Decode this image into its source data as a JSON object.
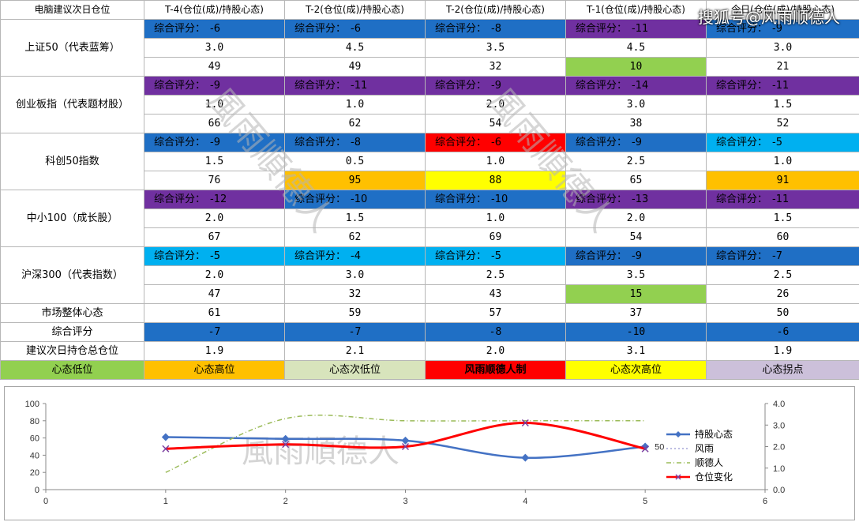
{
  "table": {
    "headers": [
      "电脑建议次日仓位",
      "T-4(仓位(成)/持股心态)",
      "T-2(仓位(成)/持股心态)",
      "T-2(仓位(成)/持股心态)",
      "T-1(仓位(成)/持股心态)",
      "今日(仓位(成)/持股心态)"
    ],
    "score_prefix": "综合评分：",
    "groups": [
      {
        "label": "上证50（代表蓝筹）",
        "cells": [
          {
            "score": "-6",
            "score_color": "#1f6fc5",
            "position": "3.0",
            "sentiment": "49",
            "sentiment_color": "#ffffff"
          },
          {
            "score": "-6",
            "score_color": "#1f6fc5",
            "position": "4.5",
            "sentiment": "49",
            "sentiment_color": "#ffffff"
          },
          {
            "score": "-8",
            "score_color": "#1f6fc5",
            "position": "3.5",
            "sentiment": "32",
            "sentiment_color": "#ffffff"
          },
          {
            "score": "-11",
            "score_color": "#7030a0",
            "position": "4.5",
            "sentiment": "10",
            "sentiment_color": "#92d050"
          },
          {
            "score": "-9",
            "score_color": "#1f6fc5",
            "position": "3.0",
            "sentiment": "21",
            "sentiment_color": "#ffffff"
          }
        ]
      },
      {
        "label": "创业板指（代表题材股）",
        "cells": [
          {
            "score": "-9",
            "score_color": "#7030a0",
            "position": "1.0",
            "sentiment": "66",
            "sentiment_color": "#ffffff"
          },
          {
            "score": "-11",
            "score_color": "#7030a0",
            "position": "1.0",
            "sentiment": "62",
            "sentiment_color": "#ffffff"
          },
          {
            "score": "-9",
            "score_color": "#7030a0",
            "position": "2.0",
            "sentiment": "54",
            "sentiment_color": "#ffffff"
          },
          {
            "score": "-14",
            "score_color": "#7030a0",
            "position": "3.0",
            "sentiment": "38",
            "sentiment_color": "#ffffff"
          },
          {
            "score": "-11",
            "score_color": "#7030a0",
            "position": "1.5",
            "sentiment": "52",
            "sentiment_color": "#ffffff"
          }
        ]
      },
      {
        "label": "科创50指数",
        "cells": [
          {
            "score": "-9",
            "score_color": "#1f6fc5",
            "position": "1.5",
            "sentiment": "76",
            "sentiment_color": "#ffffff"
          },
          {
            "score": "-8",
            "score_color": "#1f6fc5",
            "position": "0.5",
            "sentiment": "95",
            "sentiment_color": "#ffc000"
          },
          {
            "score": "-6",
            "score_color": "#ff0000",
            "position": "1.0",
            "sentiment": "88",
            "sentiment_color": "#ffff00"
          },
          {
            "score": "-9",
            "score_color": "#1f6fc5",
            "position": "2.5",
            "sentiment": "65",
            "sentiment_color": "#ffffff"
          },
          {
            "score": "-5",
            "score_color": "#00b0f0",
            "position": "1.0",
            "sentiment": "91",
            "sentiment_color": "#ffc000"
          }
        ]
      },
      {
        "label": "中小100（成长股）",
        "cells": [
          {
            "score": "-12",
            "score_color": "#7030a0",
            "position": "2.0",
            "sentiment": "67",
            "sentiment_color": "#ffffff"
          },
          {
            "score": "-10",
            "score_color": "#1f6fc5",
            "position": "1.5",
            "sentiment": "62",
            "sentiment_color": "#ffffff"
          },
          {
            "score": "-10",
            "score_color": "#1f6fc5",
            "position": "1.0",
            "sentiment": "69",
            "sentiment_color": "#ffffff"
          },
          {
            "score": "-13",
            "score_color": "#7030a0",
            "position": "2.0",
            "sentiment": "54",
            "sentiment_color": "#ffffff"
          },
          {
            "score": "-11",
            "score_color": "#7030a0",
            "position": "1.5",
            "sentiment": "60",
            "sentiment_color": "#ffffff"
          }
        ]
      },
      {
        "label": "沪深300（代表指数）",
        "cells": [
          {
            "score": "-5",
            "score_color": "#00b0f0",
            "position": "2.0",
            "sentiment": "47",
            "sentiment_color": "#ffffff"
          },
          {
            "score": "-4",
            "score_color": "#00b0f0",
            "position": "3.0",
            "sentiment": "32",
            "sentiment_color": "#ffffff"
          },
          {
            "score": "-5",
            "score_color": "#00b0f0",
            "position": "2.5",
            "sentiment": "43",
            "sentiment_color": "#ffffff"
          },
          {
            "score": "-9",
            "score_color": "#1f6fc5",
            "position": "3.5",
            "sentiment": "15",
            "sentiment_color": "#92d050"
          },
          {
            "score": "-7",
            "score_color": "#1f6fc5",
            "position": "2.5",
            "sentiment": "26",
            "sentiment_color": "#ffffff"
          }
        ]
      }
    ],
    "market_label": "市场整体心态",
    "market_values": [
      "61",
      "59",
      "57",
      "37",
      "50"
    ],
    "score_label": "综合评分",
    "score_values": [
      "-7",
      "-7",
      "-8",
      "-10",
      "-6"
    ],
    "score_row_color": "#1f6fc5",
    "suggest_label": "建议次日持仓总仓位",
    "suggest_values": [
      "1.9",
      "2.1",
      "2.0",
      "3.1",
      "1.9"
    ],
    "legend": [
      {
        "text": "心态低位",
        "color": "#92d050",
        "text_color": "#000000"
      },
      {
        "text": "心态高位",
        "color": "#ffc000",
        "text_color": "#000000"
      },
      {
        "text": "心态次低位",
        "color": "#d8e4bc",
        "text_color": "#000000"
      },
      {
        "text": "风雨顺德人制",
        "color": "#ff0000",
        "text_color": "#000000"
      },
      {
        "text": "心态次高位",
        "color": "#ffff00",
        "text_color": "#000000"
      },
      {
        "text": "心态拐点",
        "color": "#ccc0da",
        "text_color": "#000000"
      }
    ]
  },
  "watermarks": {
    "diagonal": "風雨順德人",
    "corner": "搜狐号@风雨顺德人",
    "chart": "風雨順德人"
  },
  "chart_data": {
    "type": "line",
    "x_range": [
      0,
      6
    ],
    "x_ticks": [
      "0",
      "1",
      "2",
      "3",
      "4",
      "5",
      "6"
    ],
    "y_left_range": [
      0,
      100
    ],
    "y_left_ticks": [
      "0",
      "20",
      "40",
      "60",
      "80",
      "100"
    ],
    "y_right_range": [
      0,
      4
    ],
    "y_right_ticks": [
      "0.0",
      "1.0",
      "2.0",
      "3.0",
      "4.0"
    ],
    "series": [
      {
        "name": "持股心态",
        "axis": "left",
        "color": "#4472c4",
        "marker": "diamond",
        "style": "solid",
        "x": [
          1,
          2,
          3,
          4,
          5
        ],
        "y": [
          61,
          59,
          57,
          37,
          50
        ]
      },
      {
        "name": "风雨",
        "axis": "left",
        "color": "#a6a6d8",
        "marker": "none",
        "style": "dotted",
        "x": [],
        "y": []
      },
      {
        "name": "顺德人",
        "axis": "right",
        "color": "#9bbb59",
        "marker": "none",
        "style": "dashdot",
        "x": [
          1,
          2,
          3,
          4,
          5
        ],
        "y": [
          0.8,
          3.3,
          3.2,
          3.2,
          3.2
        ]
      },
      {
        "name": "仓位变化",
        "axis": "right",
        "color": "#ff0000",
        "marker": "x",
        "style": "solid",
        "x": [
          1,
          2,
          3,
          4,
          5
        ],
        "y": [
          1.9,
          2.1,
          2.0,
          3.1,
          1.9
        ]
      }
    ],
    "data_labels": [
      {
        "series": "持股心态",
        "x": 5,
        "text": "50"
      }
    ],
    "legend_position": "right",
    "grid": false
  }
}
